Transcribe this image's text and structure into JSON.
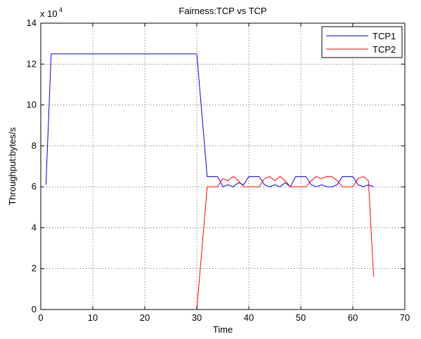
{
  "chart_data": {
    "type": "line",
    "title": "Fairness:TCP vs TCP",
    "xlabel": "Time",
    "ylabel": "Throughput:bytes/s",
    "y_multiplier_label": "x 10",
    "y_multiplier_exponent": "4",
    "xlim": [
      0,
      70
    ],
    "ylim": [
      0,
      140000
    ],
    "x_ticks": [
      0,
      10,
      20,
      30,
      40,
      50,
      60,
      70
    ],
    "y_ticks": [
      0,
      20000,
      40000,
      60000,
      80000,
      100000,
      120000,
      140000
    ],
    "x_tick_labels": [
      "0",
      "10",
      "20",
      "30",
      "40",
      "50",
      "60",
      "70"
    ],
    "y_tick_labels": [
      "0",
      "2",
      "4",
      "6",
      "8",
      "10",
      "12",
      "14"
    ],
    "grid": true,
    "legend_position": "top-right",
    "series": [
      {
        "name": "TCP1",
        "color": "#0000ff",
        "x": [
          1,
          2,
          30,
          31,
          32,
          34,
          35,
          36,
          37,
          38,
          39,
          40,
          41,
          42,
          43,
          44,
          45,
          46,
          47,
          48,
          49,
          50,
          51,
          52,
          53,
          54,
          55,
          56,
          57,
          58,
          59,
          60,
          61,
          62,
          63,
          64
        ],
        "y": [
          61000,
          125000,
          125000,
          95000,
          65000,
          65000,
          60000,
          61000,
          60000,
          62000,
          61000,
          65000,
          65000,
          65000,
          61000,
          60000,
          61000,
          60000,
          62000,
          60000,
          65000,
          65000,
          65000,
          61000,
          60000,
          61000,
          60000,
          60000,
          61000,
          65000,
          65000,
          65000,
          61000,
          60000,
          61000,
          60000
        ]
      },
      {
        "name": "TCP2",
        "color": "#ff0000",
        "x": [
          1,
          30,
          31,
          32,
          34,
          35,
          36,
          37,
          38,
          39,
          40,
          41,
          42,
          43,
          44,
          45,
          46,
          47,
          48,
          49,
          50,
          51,
          52,
          53,
          54,
          55,
          56,
          57,
          58,
          59,
          60,
          61,
          62,
          63,
          64
        ],
        "y": [
          0,
          0,
          30000,
          60000,
          60000,
          64000,
          63000,
          65000,
          63000,
          60000,
          60000,
          60000,
          60000,
          64000,
          65000,
          63000,
          65000,
          63000,
          60000,
          60000,
          60000,
          60000,
          63000,
          65000,
          64000,
          65000,
          65000,
          63000,
          60000,
          60000,
          60000,
          64000,
          65000,
          63000,
          16000
        ]
      }
    ]
  }
}
